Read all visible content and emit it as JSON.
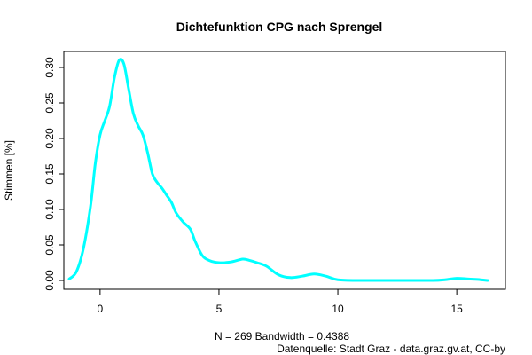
{
  "chart_data": {
    "type": "line",
    "title": "Dichtefunktion CPG nach Sprengel",
    "xlabel": "N = 269   Bandwidth = 0.4388",
    "ylabel": "Stimmen [%]",
    "source": "Datenquelle: Stadt Graz - data.graz.gv.at, CC-by",
    "xlim": [
      -1.3,
      16.3
    ],
    "ylim": [
      0,
      0.31
    ],
    "x_ticks": [
      0,
      5,
      10,
      15
    ],
    "y_ticks": [
      0.0,
      0.05,
      0.1,
      0.15,
      0.2,
      0.25,
      0.3
    ],
    "y_tick_labels": [
      "0.00",
      "0.05",
      "0.10",
      "0.15",
      "0.20",
      "0.25",
      "0.30"
    ],
    "line_color": "#00FFFF",
    "series": [
      {
        "x": [
          -1.3,
          -1.0,
          -0.7,
          -0.4,
          -0.2,
          0.0,
          0.2,
          0.4,
          0.6,
          0.8,
          1.0,
          1.2,
          1.4,
          1.6,
          1.8,
          2.0,
          2.2,
          2.4,
          2.6,
          2.8,
          3.0,
          3.2,
          3.5,
          3.8,
          4.0,
          4.3,
          4.6,
          5.0,
          5.5,
          6.0,
          6.3,
          6.6,
          7.0,
          7.5,
          8.0,
          8.5,
          9.0,
          9.5,
          10.0,
          11.0,
          12.0,
          13.0,
          14.0,
          14.5,
          15.0,
          15.5,
          16.0,
          16.3
        ],
        "y": [
          0.002,
          0.012,
          0.045,
          0.105,
          0.165,
          0.205,
          0.225,
          0.245,
          0.285,
          0.31,
          0.305,
          0.27,
          0.235,
          0.218,
          0.205,
          0.18,
          0.15,
          0.138,
          0.13,
          0.12,
          0.11,
          0.095,
          0.082,
          0.072,
          0.055,
          0.035,
          0.028,
          0.025,
          0.026,
          0.03,
          0.028,
          0.025,
          0.02,
          0.008,
          0.004,
          0.006,
          0.009,
          0.006,
          0.001,
          0.0,
          0.0,
          0.0,
          0.0,
          0.001,
          0.003,
          0.002,
          0.001,
          0.0
        ]
      }
    ]
  }
}
